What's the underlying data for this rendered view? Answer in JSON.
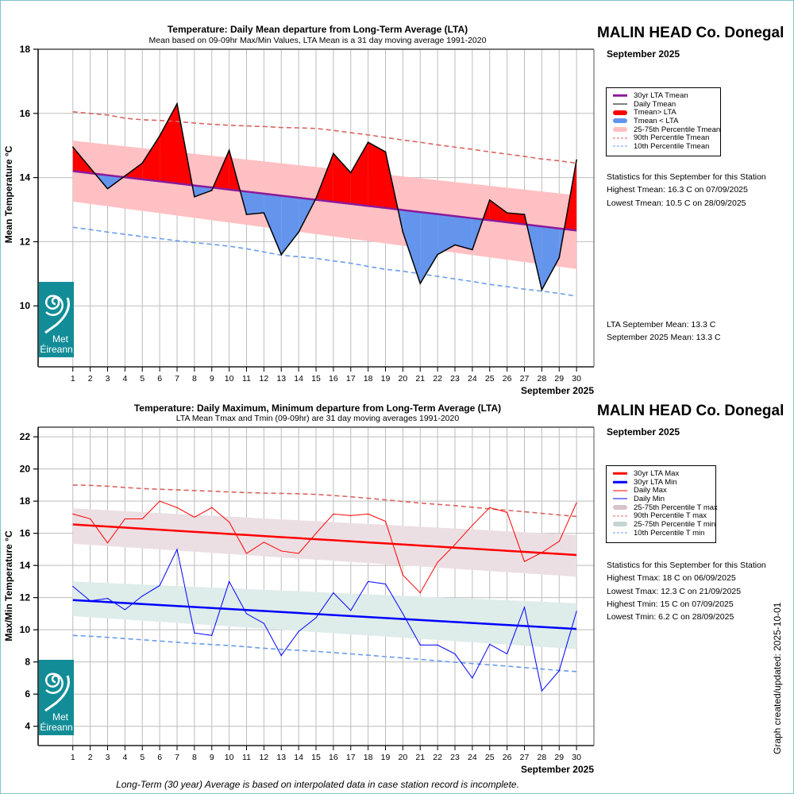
{
  "station": "MALIN HEAD Co. Donegal",
  "period": "September 2025",
  "footnote": "Long-Term (30 year) Average is based on interpolated data in case station record is incomplete.",
  "updated_label": "Graph created/updated:  2025-10-01",
  "logo": {
    "line1": "Met",
    "line2": "Éireann",
    "icon": "met-eireann-swirl-icon",
    "color": "#128d97"
  },
  "top_panel": {
    "legend": [
      {
        "label": "30yr LTA Tmean",
        "style": "line-thick",
        "color": "#8b1a9b"
      },
      {
        "label": "Daily Tmean",
        "style": "line-thin",
        "color": "#000000"
      },
      {
        "label": "Tmean> LTA",
        "style": "bar",
        "color": "#ff0000"
      },
      {
        "label": "Tmean < LTA",
        "style": "bar",
        "color": "#6495ed"
      },
      {
        "label": "25-75th Percentile Tmean",
        "style": "bar",
        "color": "#ffc0c3"
      },
      {
        "label": "90th Percentile Tmean",
        "style": "dash",
        "color": "#d9645f"
      },
      {
        "label": "10th Percentile Tmean",
        "style": "dash",
        "color": "#6b9ceb"
      }
    ],
    "stats_heading": "Statistics for this September for this Station",
    "stats": [
      "Highest Tmean: 16.3 C on 07/09/2025",
      "Lowest Tmean: 10.5 C on 28/09/2025"
    ],
    "means": [
      "LTA September Mean: 13.3 C",
      "September 2025 Mean: 13.3 C"
    ]
  },
  "bottom_panel": {
    "legend": [
      {
        "label": "30yr LTA Max",
        "style": "line-thick",
        "color": "#ff0000"
      },
      {
        "label": "30yr LTA Min",
        "style": "line-thick",
        "color": "#0000ff"
      },
      {
        "label": "Daily Max",
        "style": "line-thin",
        "color": "#ff0000"
      },
      {
        "label": "Daily Min",
        "style": "line-thin",
        "color": "#0000ff"
      },
      {
        "label": "25-75th Percentile T max",
        "style": "bar",
        "color": "#d8c3c8"
      },
      {
        "label": "90th Percentile T max",
        "style": "dash",
        "color": "#d9645f"
      },
      {
        "label": "25-75th Percentile T min",
        "style": "bar",
        "color": "#c5d3d2"
      },
      {
        "label": "10th Percentile T min",
        "style": "dash",
        "color": "#6b9ceb"
      }
    ],
    "stats_heading": "Statistics for this September for this Station",
    "stats": [
      "Highest Tmax: 18 C on 06/09/2025",
      "Lowest Tmax: 12.3 C on 21/09/2025",
      "Highest Tmin: 15 C on 07/09/2025",
      "Lowest Tmin: 6.2 C on 28/09/2025"
    ]
  },
  "chart_data": [
    {
      "type": "area",
      "title": "Temperature: Daily Mean departure from Long-Term Average (LTA)",
      "subtitle": "Mean based on 09-09hr Max/Min Values, LTA Mean is a 31 day moving average 1991-2020",
      "xlabel": "September 2025",
      "ylabel": "Mean Temperature °C",
      "ylim": [
        8.1,
        18
      ],
      "yticks": [
        10,
        12,
        14,
        16,
        18
      ],
      "x": [
        1,
        2,
        3,
        4,
        5,
        6,
        7,
        8,
        9,
        10,
        11,
        12,
        13,
        14,
        15,
        16,
        17,
        18,
        19,
        20,
        21,
        22,
        23,
        24,
        25,
        26,
        27,
        28,
        29,
        30
      ],
      "xlim": [
        -1,
        31
      ],
      "grid": true,
      "legend_position": "right",
      "series": [
        {
          "name": "Daily Tmean",
          "values": [
            14.95,
            14.3,
            13.65,
            14.05,
            14.45,
            15.3,
            16.3,
            13.4,
            13.6,
            14.85,
            12.85,
            12.9,
            11.6,
            12.3,
            13.35,
            14.75,
            14.15,
            15.1,
            14.8,
            12.3,
            10.7,
            11.6,
            11.9,
            11.75,
            13.3,
            12.9,
            12.85,
            10.5,
            11.5,
            14.55
          ]
        },
        {
          "name": "30yr LTA Tmean",
          "start": 14.2,
          "end": 12.35
        },
        {
          "name": "25th Percentile Tmean",
          "start": 13.25,
          "end": 11.15
        },
        {
          "name": "75th Percentile Tmean",
          "start": 15.15,
          "end": 13.45
        },
        {
          "name": "90th Percentile Tmean",
          "values": [
            16.05,
            16.0,
            15.95,
            15.85,
            15.8,
            15.78,
            15.75,
            15.7,
            15.66,
            15.63,
            15.61,
            15.59,
            15.56,
            15.55,
            15.53,
            15.47,
            15.4,
            15.33,
            15.25,
            15.17,
            15.1,
            15.02,
            14.95,
            14.88,
            14.8,
            14.73,
            14.66,
            14.58,
            14.52,
            14.45
          ]
        },
        {
          "name": "10th Percentile Tmean",
          "values": [
            12.45,
            12.38,
            12.3,
            12.23,
            12.16,
            12.1,
            12.03,
            11.97,
            11.92,
            11.86,
            11.78,
            11.68,
            11.58,
            11.53,
            11.48,
            11.4,
            11.33,
            11.23,
            11.14,
            11.08,
            11.0,
            10.92,
            10.84,
            10.76,
            10.67,
            10.6,
            10.52,
            10.46,
            10.39,
            10.3
          ]
        }
      ]
    },
    {
      "type": "line",
      "title": "Temperature: Daily Maximum, Minimum departure from Long-Term Average (LTA)",
      "subtitle": "LTA Mean Tmax and Tmin (09-09hr) are 31 day moving averages 1991-2020",
      "xlabel": "September 2025",
      "ylabel": "Max/Min Temperature °C",
      "ylim": [
        2.8,
        22.6
      ],
      "yticks": [
        4,
        6,
        8,
        10,
        12,
        14,
        16,
        18,
        20,
        22
      ],
      "x": [
        1,
        2,
        3,
        4,
        5,
        6,
        7,
        8,
        9,
        10,
        11,
        12,
        13,
        14,
        15,
        16,
        17,
        18,
        19,
        20,
        21,
        22,
        23,
        24,
        25,
        26,
        27,
        28,
        29,
        30
      ],
      "xlim": [
        -1,
        31
      ],
      "grid": true,
      "legend_position": "right",
      "series": [
        {
          "name": "Daily Max",
          "values": [
            17.2,
            16.9,
            15.4,
            16.9,
            16.9,
            18.0,
            17.6,
            17.0,
            17.6,
            16.7,
            14.75,
            15.45,
            14.9,
            14.75,
            16.0,
            17.2,
            17.1,
            17.2,
            16.75,
            13.4,
            12.3,
            14.2,
            15.3,
            16.5,
            17.6,
            17.3,
            14.25,
            14.8,
            15.5,
            17.9
          ]
        },
        {
          "name": "Daily Min",
          "values": [
            12.7,
            11.8,
            11.95,
            11.25,
            12.1,
            12.75,
            15.0,
            9.8,
            9.65,
            13.0,
            11.0,
            10.4,
            8.4,
            9.9,
            10.75,
            12.3,
            11.2,
            13.0,
            12.85,
            11.0,
            9.05,
            9.05,
            8.5,
            7.0,
            9.1,
            8.5,
            11.4,
            6.2,
            7.45,
            11.15
          ]
        },
        {
          "name": "30yr LTA Max",
          "start": 16.55,
          "end": 14.65
        },
        {
          "name": "30yr LTA Min",
          "start": 11.85,
          "end": 10.05
        },
        {
          "name": "25th Percentile T max",
          "start": 15.35,
          "end": 13.3
        },
        {
          "name": "75th Percentile T max",
          "start": 17.55,
          "end": 15.9
        },
        {
          "name": "25th Percentile T min",
          "start": 10.85,
          "end": 8.8
        },
        {
          "name": "75th Percentile T min",
          "start": 13.0,
          "end": 11.65
        },
        {
          "name": "90th Percentile T max",
          "values": [
            19.0,
            18.98,
            18.93,
            18.85,
            18.78,
            18.74,
            18.7,
            18.66,
            18.62,
            18.57,
            18.53,
            18.5,
            18.48,
            18.46,
            18.42,
            18.35,
            18.27,
            18.18,
            18.08,
            17.98,
            17.88,
            17.8,
            17.72,
            17.62,
            17.52,
            17.43,
            17.34,
            17.24,
            17.14,
            17.05
          ]
        },
        {
          "name": "10th Percentile T min",
          "values": [
            9.65,
            9.6,
            9.53,
            9.45,
            9.38,
            9.3,
            9.22,
            9.15,
            9.08,
            9.02,
            8.94,
            8.85,
            8.78,
            8.72,
            8.66,
            8.58,
            8.5,
            8.42,
            8.33,
            8.25,
            8.16,
            8.07,
            7.98,
            7.9,
            7.82,
            7.74,
            7.65,
            7.56,
            7.47,
            7.4
          ]
        }
      ]
    }
  ]
}
